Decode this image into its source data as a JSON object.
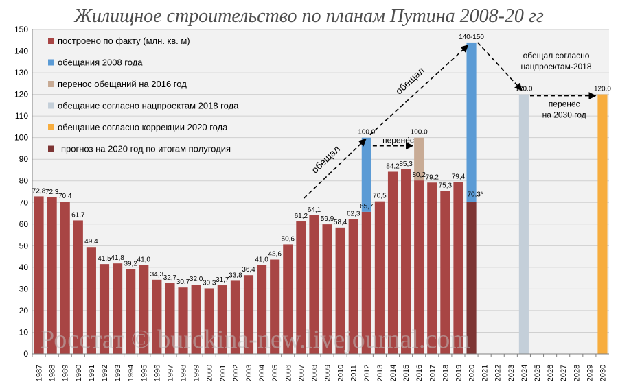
{
  "chart_data": {
    "type": "bar",
    "title": "Жилищное строительство по планам Путина 2008-20 гг",
    "ylim": [
      0,
      150
    ],
    "yticks": [
      0,
      10,
      20,
      30,
      40,
      50,
      60,
      70,
      80,
      90,
      100,
      110,
      120,
      130,
      140,
      150
    ],
    "grid": true,
    "categories": [
      "1987",
      "1988",
      "1989",
      "1990",
      "1991",
      "1992",
      "1993",
      "1994",
      "1995",
      "1996",
      "1997",
      "1998",
      "1999",
      "2000",
      "2001",
      "2002",
      "2003",
      "2004",
      "2005",
      "2006",
      "2007",
      "2008",
      "2009",
      "2010",
      "2011",
      "2012",
      "2013",
      "2014",
      "2015",
      "2016",
      "2017",
      "2018",
      "2019",
      "2020",
      "2021",
      "2022",
      "2023",
      "2024",
      "2025",
      "2026",
      "2027",
      "2028",
      "2029",
      "2030"
    ],
    "colors": {
      "actual": "#a84544",
      "promise2008": "#5b9bd5",
      "postponed2016": "#c8ab95",
      "promise2018": "#c4cfd9",
      "promise2020": "#f7ad3e",
      "forecast2020": "#7d3534"
    },
    "series": [
      {
        "name": "построено по факту (млн. кв. м)",
        "color_key": "actual",
        "points": [
          {
            "x": "1987",
            "y": 72.8,
            "label": "72,8"
          },
          {
            "x": "1988",
            "y": 72.3,
            "label": "72,3"
          },
          {
            "x": "1989",
            "y": 70.4,
            "label": "70,4"
          },
          {
            "x": "1990",
            "y": 61.7,
            "label": "61,7"
          },
          {
            "x": "1991",
            "y": 49.4,
            "label": "49,4"
          },
          {
            "x": "1992",
            "y": 41.5,
            "label": "41,5"
          },
          {
            "x": "1993",
            "y": 41.8,
            "label": "41,8"
          },
          {
            "x": "1994",
            "y": 39.2,
            "label": "39,2"
          },
          {
            "x": "1995",
            "y": 41.0,
            "label": "41,0"
          },
          {
            "x": "1996",
            "y": 34.3,
            "label": "34,3"
          },
          {
            "x": "1997",
            "y": 32.7,
            "label": "32,7"
          },
          {
            "x": "1998",
            "y": 30.7,
            "label": "30,7"
          },
          {
            "x": "1999",
            "y": 32.0,
            "label": "32,0"
          },
          {
            "x": "2000",
            "y": 30.3,
            "label": "30,3"
          },
          {
            "x": "2001",
            "y": 31.7,
            "label": "31,7"
          },
          {
            "x": "2002",
            "y": 33.8,
            "label": "33,8"
          },
          {
            "x": "2003",
            "y": 36.4,
            "label": "36,4"
          },
          {
            "x": "2004",
            "y": 41.0,
            "label": "41,0"
          },
          {
            "x": "2005",
            "y": 43.6,
            "label": "43,6"
          },
          {
            "x": "2006",
            "y": 50.6,
            "label": "50,6"
          },
          {
            "x": "2007",
            "y": 61.2,
            "label": "61,2"
          },
          {
            "x": "2008",
            "y": 64.1,
            "label": "64,1"
          },
          {
            "x": "2009",
            "y": 59.9,
            "label": "59,9"
          },
          {
            "x": "2010",
            "y": 58.4,
            "label": "58,4"
          },
          {
            "x": "2011",
            "y": 62.3,
            "label": "62,3"
          },
          {
            "x": "2012",
            "y": 65.7,
            "label": "65,7"
          },
          {
            "x": "2013",
            "y": 70.5,
            "label": "70,5"
          },
          {
            "x": "2014",
            "y": 84.2,
            "label": "84,2"
          },
          {
            "x": "2015",
            "y": 85.3,
            "label": "85,3"
          },
          {
            "x": "2016",
            "y": 80.2,
            "label": "80,2"
          },
          {
            "x": "2017",
            "y": 79.2,
            "label": "79,2"
          },
          {
            "x": "2018",
            "y": 75.3,
            "label": "75,3"
          },
          {
            "x": "2019",
            "y": 79.4,
            "label": "79,4"
          }
        ]
      },
      {
        "name": "обещания 2008 года",
        "color_key": "promise2008",
        "points": [
          {
            "x": "2012",
            "y0": 65.7,
            "y": 100.0,
            "label": "100.0"
          },
          {
            "x": "2020",
            "y0": 70.3,
            "y": 144.0,
            "label": "140-150"
          }
        ]
      },
      {
        "name": "перенос обещаний на 2016 год",
        "color_key": "postponed2016",
        "points": [
          {
            "x": "2016",
            "y0": 80.2,
            "y": 100.0,
            "label": "100.0"
          }
        ]
      },
      {
        "name": "обещание согласно нацпроектам 2018 года",
        "color_key": "promise2018",
        "points": [
          {
            "x": "2024",
            "y0": 0,
            "y": 120.0,
            "label": "120.0"
          }
        ]
      },
      {
        "name": "обещание согласно коррекции 2020 года",
        "color_key": "promise2020",
        "points": [
          {
            "x": "2030",
            "y0": 0,
            "y": 120.0,
            "label": "120.0"
          }
        ]
      },
      {
        "name": "прогноз на 2020 год по итогам полугодия",
        "color_key": "forecast2020",
        "points": [
          {
            "x": "2020",
            "y0": 0,
            "y": 70.3,
            "label": "70,3*"
          }
        ]
      }
    ],
    "annotations": [
      {
        "text": "обещал",
        "rotated": true,
        "from": {
          "x": "2007",
          "y": 70
        },
        "to": {
          "x": "2012",
          "y": 100
        }
      },
      {
        "text": "обещал",
        "rotated": true,
        "from": {
          "x": "2012",
          "y": 100
        },
        "to": {
          "x": "2020",
          "y": 144
        }
      },
      {
        "text": "перенёс",
        "rotated": false,
        "from": {
          "x": "2012",
          "y": 100
        },
        "to": {
          "x": "2016",
          "y": 100
        }
      },
      {
        "text": "обещал согласно",
        "text2": "нацпроектам-2018",
        "rotated": false,
        "from": {
          "x": "2020",
          "y": 144
        },
        "to": {
          "x": "2024",
          "y": 120
        }
      },
      {
        "text": "перенёс",
        "text2": "на 2030 год",
        "rotated": false,
        "from": {
          "x": "2024",
          "y": 120
        },
        "to": {
          "x": "2030",
          "y": 120
        }
      }
    ],
    "legend_placement": "top-left"
  },
  "watermark": "Росстат © burckina-new.livejournal.com"
}
